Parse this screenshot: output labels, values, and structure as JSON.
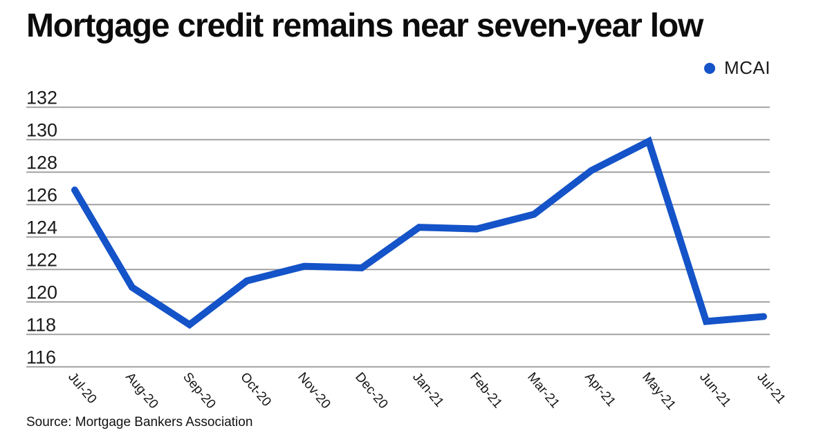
{
  "title": "Mortgage credit remains near seven-year low",
  "legend": {
    "label": "MCAI"
  },
  "source": "Source: Mortgage Bankers Association",
  "colors": {
    "line": "#1453c8",
    "grid": "#9b9b9b",
    "text": "#1a1a1a",
    "background": "#ffffff"
  },
  "chart_data": {
    "type": "line",
    "title": "Mortgage credit remains near seven-year low",
    "categories": [
      "Jul-20",
      "Aug-20",
      "Sep-20",
      "Oct-20",
      "Nov-20",
      "Dec-20",
      "Jan-21",
      "Feb-21",
      "Mar-21",
      "Apr-21",
      "May-21",
      "Jun-21",
      "Jul-21"
    ],
    "series": [
      {
        "name": "MCAI",
        "color": "#1453c8",
        "values": [
          126.9,
          120.9,
          118.6,
          121.3,
          122.2,
          122.1,
          124.6,
          124.5,
          125.4,
          128.1,
          129.9,
          118.8,
          119.1
        ]
      }
    ],
    "xlabel": "",
    "ylabel": "",
    "ylim": [
      116,
      132
    ],
    "y_tick_step": 2,
    "y_ticks": [
      132,
      130,
      128,
      126,
      124,
      122,
      120,
      118,
      116
    ],
    "grid": "horizontal",
    "legend_position": "top-right",
    "x_tick_rotation": 50,
    "source": "Source: Mortgage Bankers Association"
  }
}
